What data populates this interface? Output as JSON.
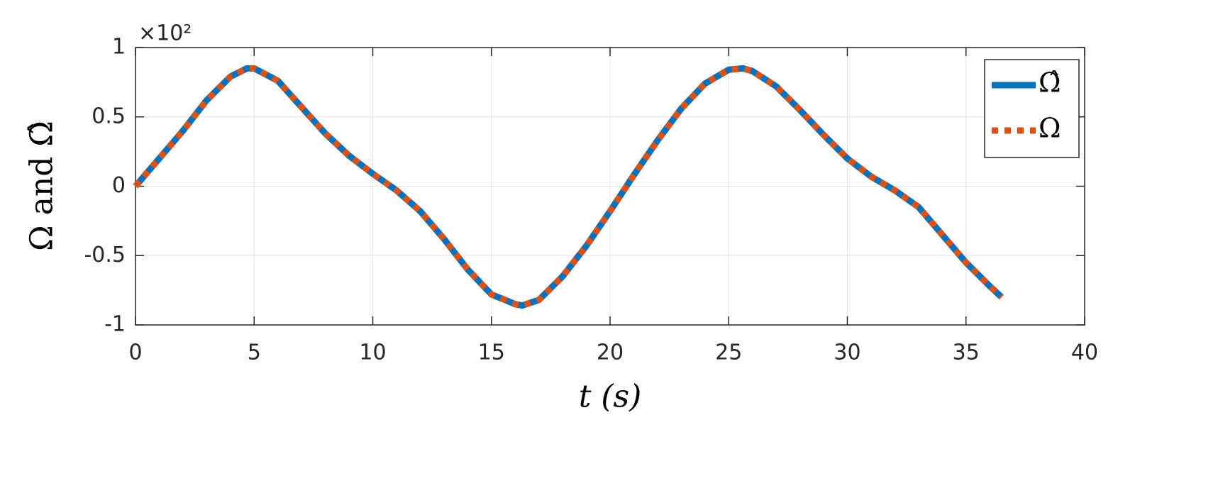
{
  "chart_data": {
    "type": "line",
    "ylabel": "Ω and Ω̂",
    "xlabel": "t (s)",
    "y_exponent_label": "×10²",
    "x": [
      0,
      1,
      2,
      3,
      4,
      4.7,
      5,
      6,
      7,
      8,
      9,
      10,
      11,
      12,
      13,
      14,
      15,
      16,
      16.3,
      17,
      18,
      19,
      20,
      21,
      22,
      23,
      24,
      25,
      25.6,
      26,
      27,
      28,
      29,
      30,
      31,
      32,
      33,
      34,
      35,
      36,
      36.5
    ],
    "series": [
      {
        "name": "Ω̂",
        "color": "#0072bd",
        "dashed": false,
        "values": [
          0,
          0.2,
          0.4,
          0.62,
          0.79,
          0.85,
          0.85,
          0.76,
          0.57,
          0.38,
          0.22,
          0.09,
          -0.03,
          -0.18,
          -0.38,
          -0.6,
          -0.78,
          -0.85,
          -0.86,
          -0.82,
          -0.65,
          -0.43,
          -0.18,
          0.08,
          0.33,
          0.56,
          0.74,
          0.84,
          0.85,
          0.83,
          0.72,
          0.55,
          0.37,
          0.2,
          0.07,
          -0.03,
          -0.15,
          -0.35,
          -0.55,
          -0.72,
          -0.8
        ]
      },
      {
        "name": "Ω",
        "color": "#d95319",
        "dashed": true,
        "values": [
          0,
          0.2,
          0.4,
          0.62,
          0.79,
          0.85,
          0.85,
          0.76,
          0.57,
          0.38,
          0.22,
          0.09,
          -0.03,
          -0.18,
          -0.38,
          -0.6,
          -0.78,
          -0.85,
          -0.86,
          -0.82,
          -0.65,
          -0.43,
          -0.18,
          0.08,
          0.33,
          0.56,
          0.74,
          0.84,
          0.85,
          0.83,
          0.72,
          0.55,
          0.37,
          0.2,
          0.07,
          -0.03,
          -0.15,
          -0.35,
          -0.55,
          -0.72,
          -0.8
        ]
      }
    ],
    "xlim": [
      0,
      40
    ],
    "xticks": [
      0,
      5,
      10,
      15,
      20,
      25,
      30,
      35,
      40
    ],
    "ylim": [
      -1,
      1
    ],
    "yticks": [
      -1,
      -0.5,
      0,
      0.5,
      1
    ],
    "grid": true,
    "legend": "top-right"
  }
}
